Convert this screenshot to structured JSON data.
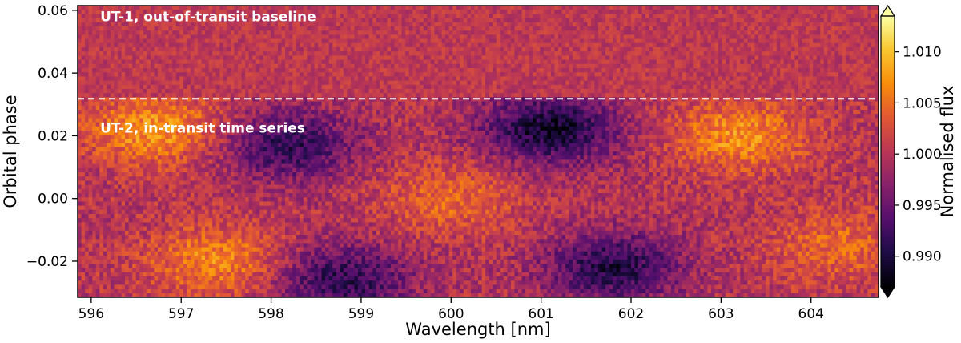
{
  "chart_data": {
    "type": "heatmap",
    "xlabel": "Wavelength [nm]",
    "ylabel": "Orbital phase",
    "xlim": [
      595.85,
      604.75
    ],
    "ylim": [
      -0.0315,
      0.0615
    ],
    "x_ticks": [
      596,
      597,
      598,
      599,
      600,
      601,
      602,
      603,
      604
    ],
    "y_ticks": [
      -0.02,
      0.0,
      0.02,
      0.04,
      0.06
    ],
    "x_tick_labels": [
      "596",
      "597",
      "598",
      "599",
      "600",
      "601",
      "602",
      "603",
      "604"
    ],
    "y_tick_labels": [
      "−0.02",
      "0.00",
      "0.02",
      "0.04",
      "0.06"
    ],
    "colorbar": {
      "label": "Normalised flux",
      "colormap": "inferno",
      "vmin": 0.987,
      "vmax": 1.0135,
      "extend": "both",
      "ticks": [
        0.99,
        0.995,
        1.0,
        1.005,
        1.01
      ],
      "tick_labels": [
        "0.990",
        "0.995",
        "1.000",
        "1.005",
        "1.010"
      ]
    },
    "separator": {
      "phase": 0.0318,
      "style": "dashed",
      "color": "#ffffff"
    },
    "annotations": [
      {
        "text": "UT-1, out-of-transit baseline",
        "x": 596.1,
        "y": 0.0565
      },
      {
        "text": "UT-2, in-transit time series",
        "x": 596.1,
        "y": 0.021
      }
    ],
    "regions": [
      {
        "label": "UT-1, out-of-transit baseline",
        "phase_range": [
          0.0318,
          0.0615
        ],
        "mean_flux": 1.0005
      },
      {
        "label": "UT-2, in-transit time series",
        "phase_range": [
          -0.0315,
          0.0318
        ]
      }
    ],
    "in_transit_features": [
      {
        "kind": "low",
        "wavelength": 598.2,
        "phase": 0.017,
        "flux": 0.9915
      },
      {
        "kind": "low",
        "wavelength": 601.1,
        "phase": 0.022,
        "flux": 0.989
      },
      {
        "kind": "low",
        "wavelength": 598.8,
        "phase": -0.026,
        "flux": 0.991
      },
      {
        "kind": "low",
        "wavelength": 601.8,
        "phase": -0.022,
        "flux": 0.9905
      },
      {
        "kind": "high",
        "wavelength": 596.7,
        "phase": 0.022,
        "flux": 1.0075
      },
      {
        "kind": "high",
        "wavelength": 603.2,
        "phase": 0.02,
        "flux": 1.007
      },
      {
        "kind": "high",
        "wavelength": 597.4,
        "phase": -0.02,
        "flux": 1.0065
      },
      {
        "kind": "high",
        "wavelength": 600.0,
        "phase": 0.0,
        "flux": 1.0045
      },
      {
        "kind": "high",
        "wavelength": 604.3,
        "phase": -0.015,
        "flux": 1.0045
      }
    ]
  }
}
